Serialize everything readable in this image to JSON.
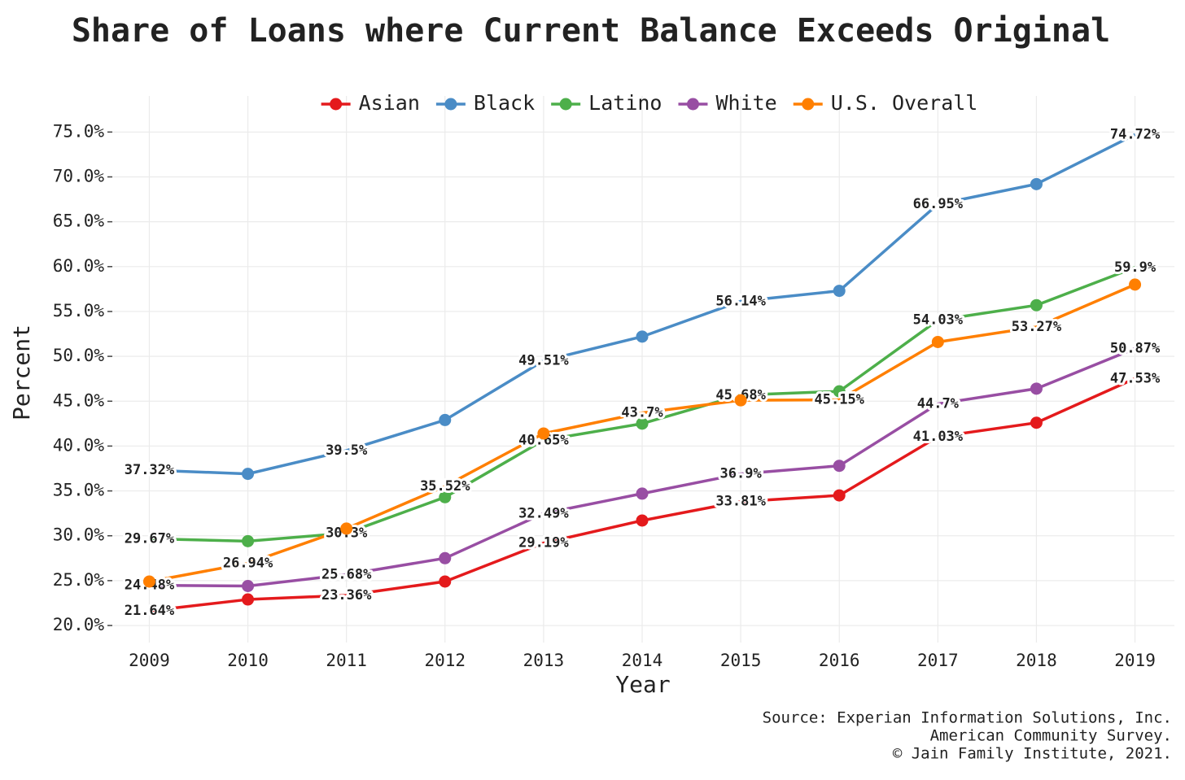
{
  "chart_data": {
    "type": "line",
    "title": "Share of Loans where Current Balance Exceeds Original",
    "x_label": "Year",
    "y_label": "Percent",
    "source": [
      "Source: Experian Information Solutions, Inc.",
      "American Community Survey.",
      "© Jain Family Institute, 2021."
    ],
    "x": [
      2009,
      2010,
      2011,
      2012,
      2013,
      2014,
      2015,
      2016,
      2017,
      2018,
      2019
    ],
    "xlim": [
      2008.6,
      2019.4
    ],
    "xticks": [
      2009,
      2010,
      2011,
      2012,
      2013,
      2014,
      2015,
      2016,
      2017,
      2018,
      2019
    ],
    "ylim": [
      18.1,
      76.3
    ],
    "yticks": [
      {
        "value": 20,
        "label": "20.0%"
      },
      {
        "value": 25,
        "label": "25.0%"
      },
      {
        "value": 30,
        "label": "30.0%"
      },
      {
        "value": 35,
        "label": "35.0%"
      },
      {
        "value": 40,
        "label": "40.0%"
      },
      {
        "value": 45,
        "label": "45.0%"
      },
      {
        "value": 50,
        "label": "50.0%"
      },
      {
        "value": 55,
        "label": "55.0%"
      },
      {
        "value": 60,
        "label": "60.0%"
      },
      {
        "value": 65,
        "label": "65.0%"
      },
      {
        "value": 70,
        "label": "70.0%"
      },
      {
        "value": 75,
        "label": "75.0%"
      }
    ],
    "grid": true,
    "legend": "top",
    "series": [
      {
        "name": "Asian",
        "color": "#e41a1c",
        "values": [
          21.64,
          22.9,
          23.36,
          24.9,
          29.19,
          31.7,
          33.81,
          34.5,
          41.03,
          42.6,
          47.53
        ],
        "value_labels": [
          "21.64%",
          null,
          "23.36%",
          null,
          "29.19%",
          null,
          "33.81%",
          null,
          "41.03%",
          null,
          "47.53%"
        ]
      },
      {
        "name": "Black",
        "color": "#4a8cc6",
        "values": [
          37.32,
          36.9,
          39.5,
          42.9,
          49.51,
          52.2,
          56.14,
          57.3,
          66.95,
          69.2,
          74.72
        ],
        "value_labels": [
          "37.32%",
          null,
          "39.5%",
          null,
          "49.51%",
          null,
          "56.14%",
          null,
          "66.95%",
          null,
          "74.72%"
        ]
      },
      {
        "name": "Latino",
        "color": "#4daf4a",
        "values": [
          29.67,
          29.4,
          30.3,
          34.3,
          40.65,
          42.5,
          45.68,
          46.1,
          54.03,
          55.7,
          59.9
        ],
        "value_labels": [
          "29.67%",
          null,
          "30.3%",
          null,
          "40.65%",
          null,
          "45.68%",
          null,
          "54.03%",
          null,
          "59.9%"
        ]
      },
      {
        "name": "White",
        "color": "#984ea3",
        "values": [
          24.48,
          24.4,
          25.68,
          27.5,
          32.49,
          34.7,
          36.9,
          37.8,
          44.7,
          46.4,
          50.87
        ],
        "value_labels": [
          "24.48%",
          null,
          "25.68%",
          null,
          "32.49%",
          null,
          "36.9%",
          null,
          "44.7%",
          null,
          "50.87%"
        ]
      },
      {
        "name": "U.S. Overall",
        "color": "#ff7f00",
        "values": [
          24.9,
          26.94,
          30.8,
          35.52,
          41.4,
          43.7,
          45.1,
          45.15,
          51.6,
          53.27,
          58.0
        ],
        "value_labels": [
          null,
          "26.94%",
          null,
          "35.52%",
          null,
          "43.7%",
          null,
          "45.15%",
          null,
          "53.27%",
          null
        ]
      }
    ]
  }
}
